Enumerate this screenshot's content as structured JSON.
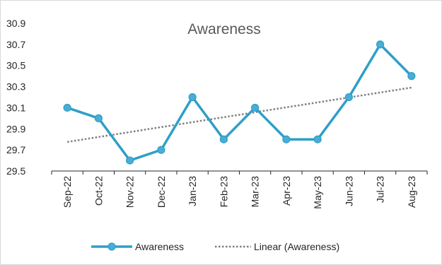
{
  "chart_data": {
    "type": "line",
    "title": "Awareness",
    "categories": [
      "Sep-22",
      "Oct-22",
      "Nov-22",
      "Dec-22",
      "Jan-23",
      "Feb-23",
      "Mar-23",
      "Apr-23",
      "May-23",
      "Jun-23",
      "Jul-23",
      "Aug-23"
    ],
    "series": [
      {
        "name": "Awareness",
        "values": [
          30.1,
          30.0,
          29.6,
          29.7,
          30.2,
          29.8,
          30.1,
          29.8,
          29.8,
          30.2,
          30.7,
          30.4
        ]
      }
    ],
    "trendline": {
      "name": "Linear (Awareness)",
      "type": "linear"
    },
    "ylim": [
      29.5,
      30.9
    ],
    "yticks": [
      29.5,
      29.7,
      29.9,
      30.1,
      30.3,
      30.5,
      30.7,
      30.9
    ],
    "xlabel": "",
    "ylabel": "",
    "grid": false,
    "legend_position": "bottom",
    "colors": {
      "series": "#2e9fc8",
      "marker_fill": "#4badd4",
      "trend": "#7f7f7f",
      "axis": "#262626"
    }
  }
}
